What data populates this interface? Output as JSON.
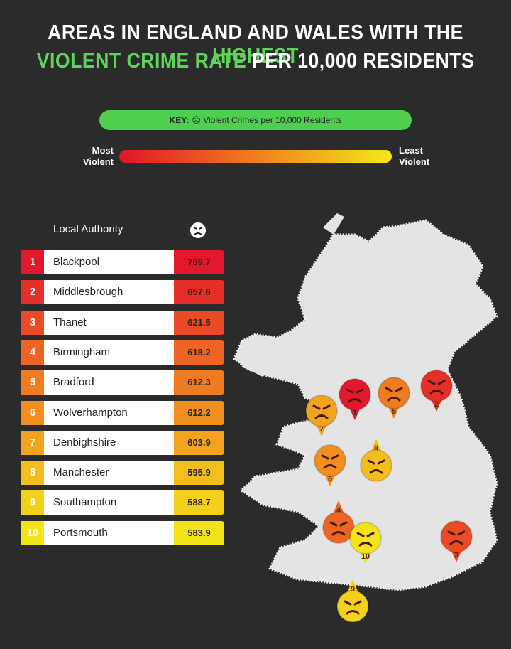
{
  "title": {
    "line1_plain": "AREAS IN ENGLAND AND WALES WITH THE",
    "line1_highlight": "HIGHEST",
    "line2_highlight": "VIOLENT CRIME RATE",
    "line2_plain": "PER 10,000 RESIDENTS"
  },
  "key": {
    "label": "KEY:",
    "text": "Violent Crimes per 10,000 Residents"
  },
  "legend": {
    "most": "Most Violent",
    "least": "Least Violent"
  },
  "table": {
    "header": "Local Authority",
    "rows": [
      {
        "rank": 1,
        "name": "Blackpool",
        "value": 769.7,
        "color": "#e3182c"
      },
      {
        "rank": 2,
        "name": "Middlesbrough",
        "value": 657.6,
        "color": "#e62f28"
      },
      {
        "rank": 3,
        "name": "Thanet",
        "value": 621.5,
        "color": "#ea4a26"
      },
      {
        "rank": 4,
        "name": "Birmingham",
        "value": 618.2,
        "color": "#ed6424"
      },
      {
        "rank": 5,
        "name": "Bradford",
        "value": 612.3,
        "color": "#f07c22"
      },
      {
        "rank": 6,
        "name": "Wolverhampton",
        "value": 612.2,
        "color": "#f28d20"
      },
      {
        "rank": 7,
        "name": "Denbighshire",
        "value": 603.9,
        "color": "#f3a41e"
      },
      {
        "rank": 8,
        "name": "Manchester",
        "value": 595.9,
        "color": "#f3bd1c"
      },
      {
        "rank": 9,
        "name": "Southampton",
        "value": 588.7,
        "color": "#f3d11a"
      },
      {
        "rank": 10,
        "name": "Portsmouth",
        "value": 583.9,
        "color": "#f2e418"
      }
    ]
  }
}
